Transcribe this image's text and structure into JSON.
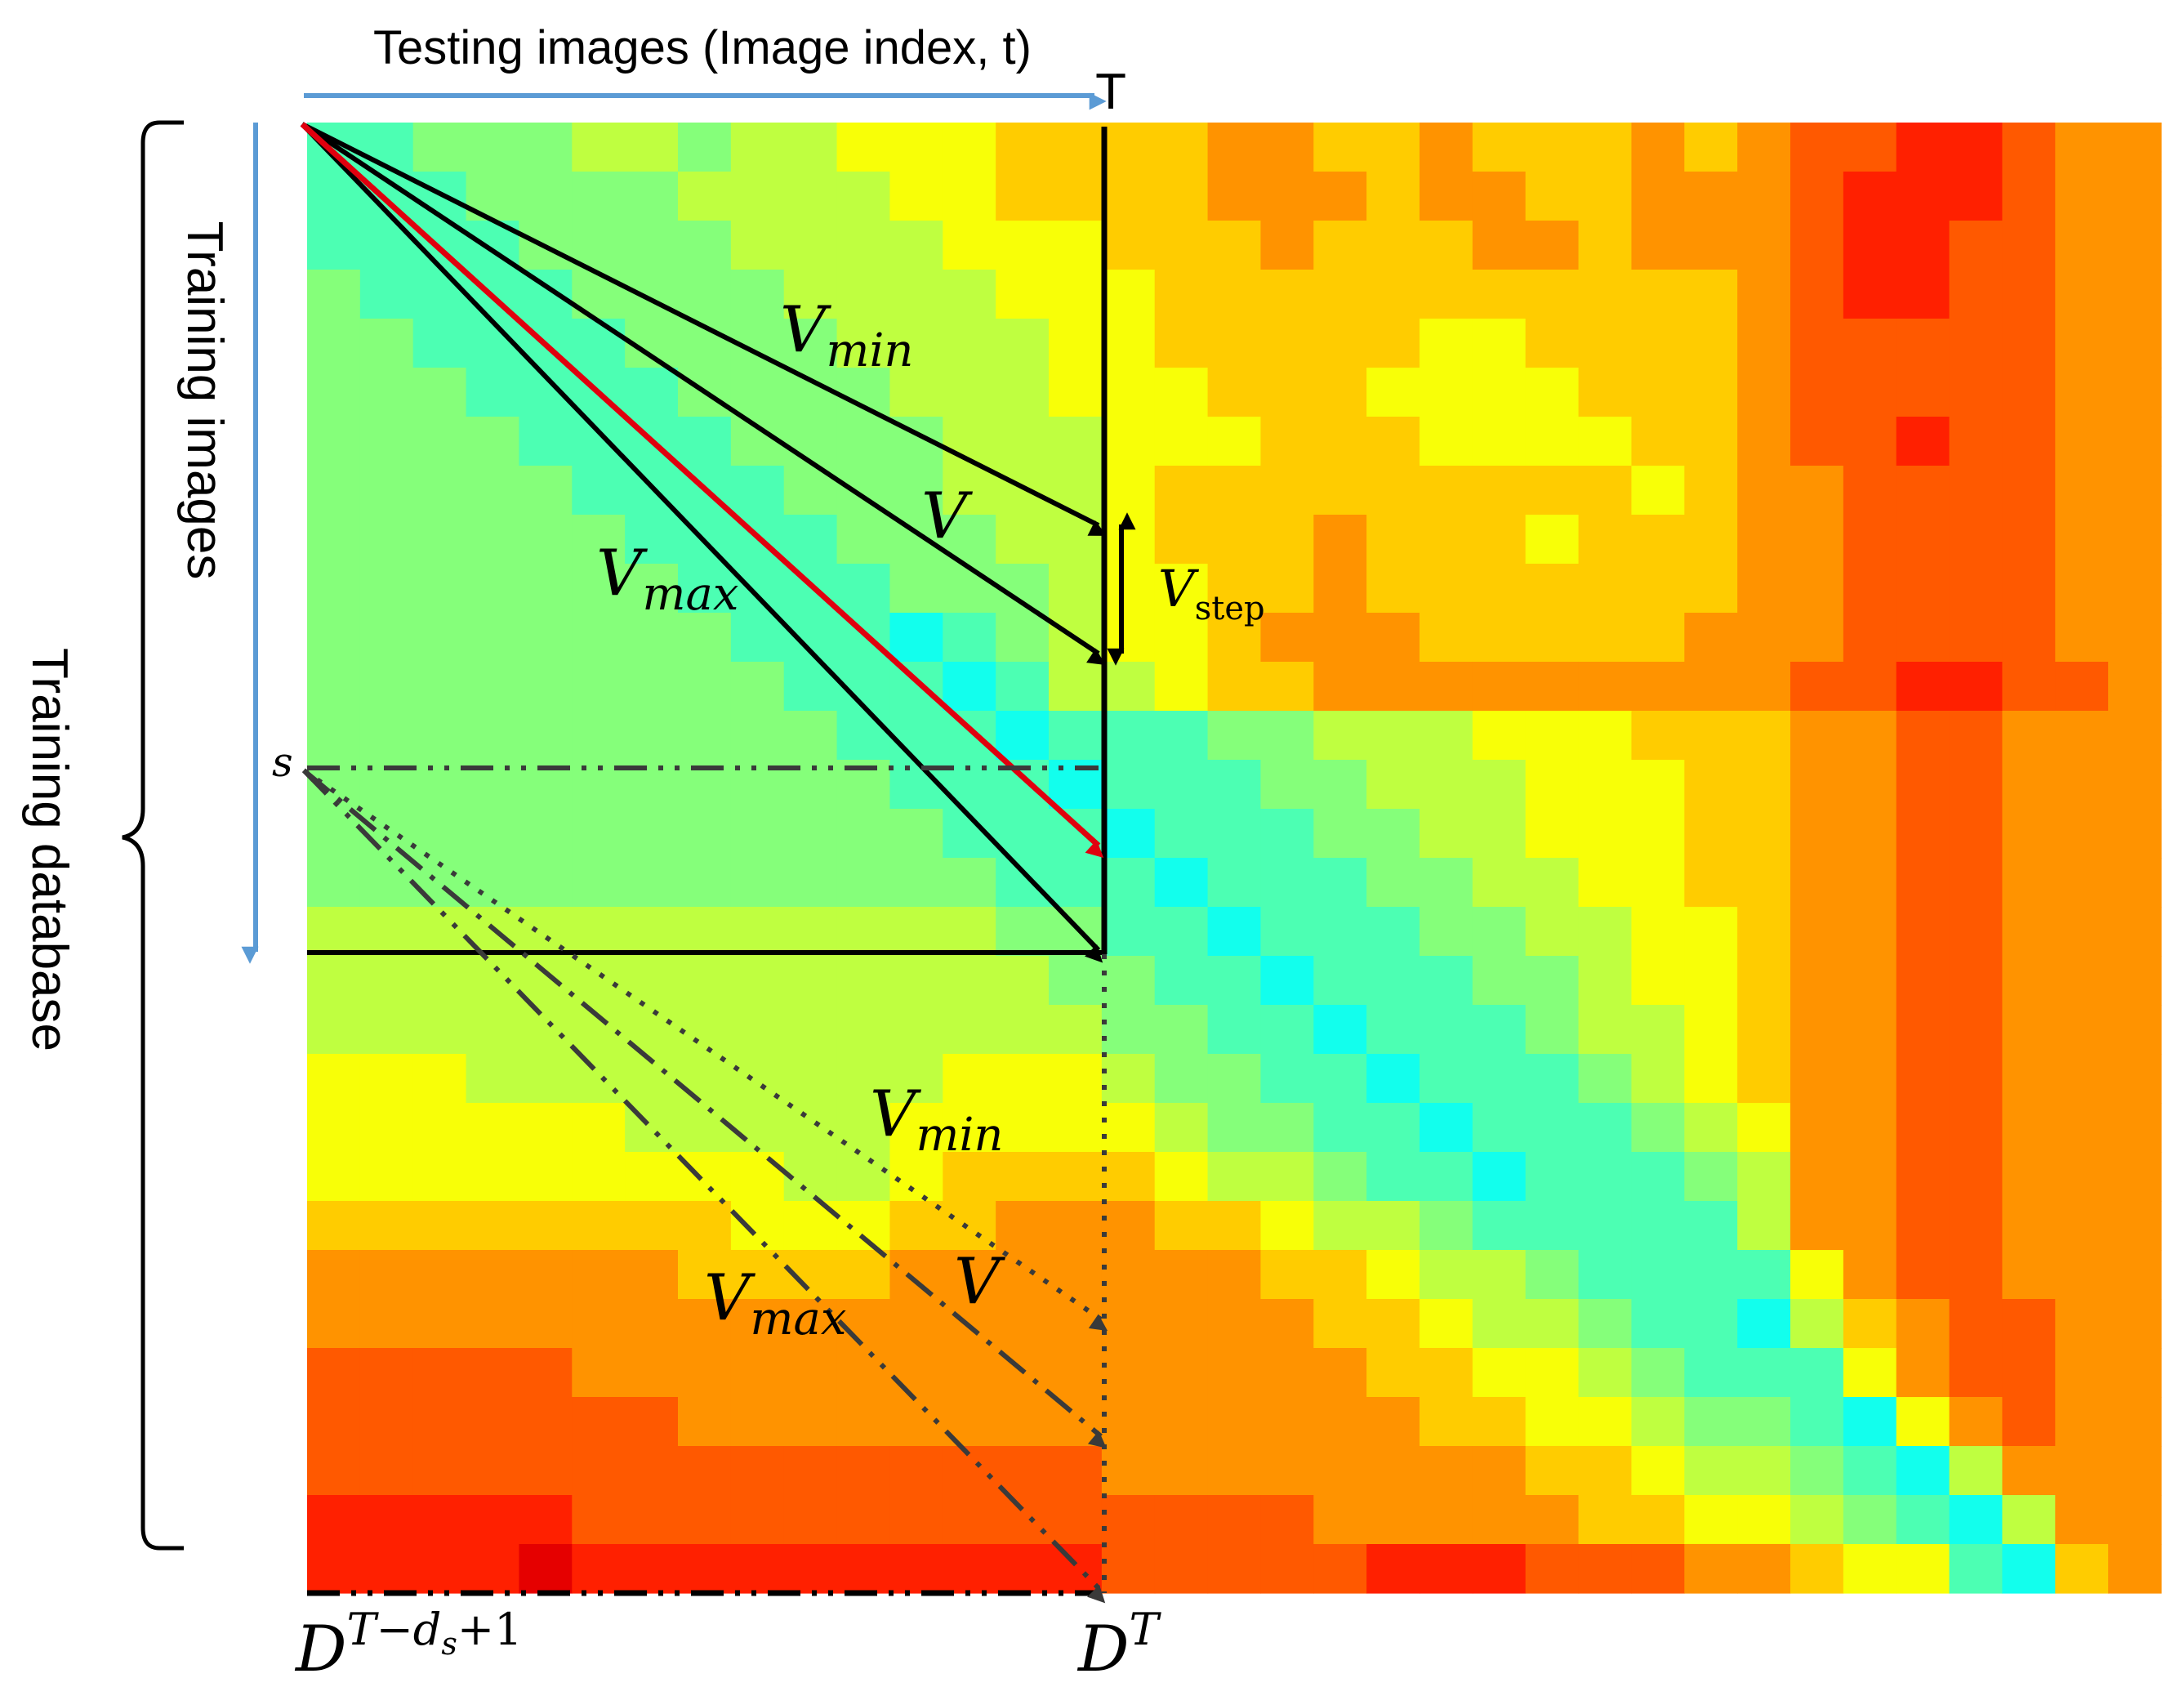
{
  "top_axis": {
    "label": "Testing images (Image index, t)",
    "end_label": "T"
  },
  "left_axis": {
    "inner_label": "Training images",
    "outer_label": "Training database"
  },
  "upper_vectors": {
    "v_min": {
      "base": "V",
      "sub": "min"
    },
    "v": {
      "base": "V"
    },
    "v_max": {
      "base": "V",
      "sub": "max"
    },
    "v_step": {
      "base": "V",
      "sub": "step"
    }
  },
  "lower_vectors": {
    "start_label": "s",
    "v_min": {
      "base": "V",
      "sub": "min"
    },
    "v": {
      "base": "V"
    },
    "v_max": {
      "base": "V",
      "sub": "max"
    }
  },
  "bottom_labels": {
    "left": {
      "base": "D",
      "sup": "T−d",
      "sup_sub": "s",
      "sup_tail": "+1"
    },
    "right": {
      "base": "D",
      "sup": "T"
    }
  },
  "heatmap": {
    "colormap": "jet",
    "rows": 30,
    "cols": 35,
    "values": [
      [
        3,
        3,
        4,
        4,
        4,
        5,
        5,
        4,
        5,
        5,
        6,
        6,
        6,
        7,
        7,
        7,
        7,
        8,
        8,
        7,
        7,
        8,
        7,
        7,
        7,
        8,
        7,
        8,
        9,
        9,
        10,
        10,
        9,
        8,
        8
      ],
      [
        3,
        3,
        3,
        4,
        4,
        4,
        4,
        5,
        5,
        5,
        5,
        6,
        6,
        7,
        7,
        7,
        7,
        8,
        8,
        8,
        7,
        8,
        8,
        7,
        7,
        8,
        8,
        8,
        9,
        10,
        10,
        10,
        9,
        8,
        8
      ],
      [
        3,
        3,
        3,
        3,
        4,
        4,
        4,
        4,
        5,
        5,
        5,
        5,
        6,
        6,
        6,
        7,
        7,
        7,
        8,
        7,
        7,
        7,
        8,
        8,
        7,
        8,
        8,
        8,
        9,
        10,
        10,
        9,
        9,
        8,
        8
      ],
      [
        4,
        3,
        3,
        3,
        3,
        4,
        4,
        4,
        4,
        5,
        5,
        5,
        5,
        6,
        6,
        6,
        7,
        7,
        7,
        7,
        7,
        7,
        7,
        7,
        7,
        7,
        7,
        8,
        9,
        10,
        10,
        9,
        9,
        8,
        8
      ],
      [
        4,
        4,
        3,
        3,
        3,
        3,
        4,
        4,
        4,
        4,
        5,
        5,
        5,
        5,
        6,
        6,
        7,
        7,
        7,
        7,
        7,
        6,
        6,
        7,
        7,
        7,
        7,
        8,
        9,
        9,
        9,
        9,
        9,
        8,
        8
      ],
      [
        4,
        4,
        4,
        3,
        3,
        3,
        3,
        4,
        4,
        4,
        4,
        5,
        5,
        5,
        6,
        6,
        6,
        7,
        7,
        7,
        6,
        6,
        6,
        6,
        7,
        7,
        7,
        8,
        9,
        9,
        9,
        9,
        9,
        8,
        8
      ],
      [
        4,
        4,
        4,
        4,
        3,
        3,
        3,
        3,
        4,
        4,
        4,
        4,
        5,
        5,
        5,
        6,
        6,
        6,
        7,
        7,
        7,
        6,
        6,
        6,
        6,
        7,
        7,
        8,
        9,
        9,
        10,
        9,
        9,
        8,
        8
      ],
      [
        4,
        4,
        4,
        4,
        4,
        3,
        3,
        3,
        3,
        4,
        4,
        4,
        5,
        5,
        5,
        6,
        7,
        7,
        7,
        7,
        7,
        7,
        7,
        7,
        7,
        6,
        7,
        8,
        8,
        9,
        9,
        9,
        9,
        8,
        8
      ],
      [
        4,
        4,
        4,
        4,
        4,
        4,
        3,
        3,
        3,
        3,
        4,
        4,
        4,
        5,
        5,
        6,
        7,
        7,
        7,
        8,
        7,
        7,
        7,
        6,
        7,
        7,
        7,
        8,
        8,
        9,
        9,
        9,
        9,
        8,
        8
      ],
      [
        4,
        4,
        4,
        4,
        4,
        4,
        4,
        3,
        3,
        3,
        3,
        4,
        4,
        4,
        5,
        6,
        6,
        7,
        7,
        8,
        7,
        7,
        7,
        7,
        7,
        7,
        7,
        8,
        8,
        9,
        9,
        9,
        9,
        8,
        8
      ],
      [
        4,
        4,
        4,
        4,
        4,
        4,
        4,
        4,
        3,
        3,
        3,
        2,
        3,
        4,
        5,
        6,
        6,
        7,
        8,
        8,
        8,
        7,
        7,
        7,
        7,
        7,
        8,
        8,
        8,
        9,
        9,
        9,
        9,
        8,
        8
      ],
      [
        4,
        4,
        4,
        4,
        4,
        4,
        4,
        4,
        4,
        3,
        3,
        3,
        2,
        3,
        5,
        5,
        6,
        7,
        7,
        8,
        8,
        8,
        8,
        8,
        8,
        8,
        8,
        8,
        9,
        9,
        10,
        10,
        9,
        9,
        8
      ],
      [
        4,
        4,
        4,
        4,
        4,
        4,
        4,
        4,
        4,
        4,
        3,
        3,
        3,
        2,
        3,
        3,
        3,
        4,
        4,
        5,
        5,
        5,
        6,
        6,
        6,
        7,
        7,
        7,
        8,
        8,
        9,
        9,
        8,
        8,
        8
      ],
      [
        4,
        4,
        4,
        4,
        4,
        4,
        4,
        4,
        4,
        4,
        4,
        3,
        3,
        3,
        2,
        3,
        3,
        3,
        4,
        4,
        5,
        5,
        5,
        6,
        6,
        6,
        7,
        7,
        8,
        8,
        9,
        9,
        8,
        8,
        8
      ],
      [
        4,
        4,
        4,
        4,
        4,
        4,
        4,
        4,
        4,
        4,
        4,
        4,
        3,
        3,
        3,
        2,
        3,
        3,
        3,
        4,
        4,
        5,
        5,
        6,
        6,
        6,
        7,
        7,
        8,
        8,
        9,
        9,
        8,
        8,
        8
      ],
      [
        4,
        4,
        4,
        4,
        4,
        4,
        4,
        4,
        4,
        4,
        4,
        4,
        4,
        3,
        3,
        3,
        2,
        3,
        3,
        3,
        4,
        4,
        5,
        5,
        6,
        6,
        7,
        7,
        8,
        8,
        9,
        9,
        8,
        8,
        8
      ],
      [
        5,
        5,
        5,
        5,
        5,
        5,
        5,
        5,
        5,
        5,
        5,
        5,
        5,
        4,
        4,
        3,
        3,
        2,
        3,
        3,
        3,
        4,
        4,
        5,
        5,
        6,
        6,
        7,
        8,
        8,
        9,
        9,
        8,
        8,
        8
      ],
      [
        5,
        5,
        5,
        5,
        5,
        5,
        5,
        5,
        5,
        5,
        5,
        5,
        5,
        5,
        4,
        4,
        3,
        3,
        2,
        3,
        3,
        3,
        4,
        4,
        5,
        6,
        6,
        7,
        8,
        8,
        9,
        9,
        8,
        8,
        8
      ],
      [
        5,
        5,
        5,
        5,
        5,
        5,
        5,
        5,
        5,
        5,
        5,
        5,
        5,
        5,
        5,
        4,
        4,
        3,
        3,
        2,
        3,
        3,
        3,
        4,
        5,
        5,
        6,
        7,
        8,
        8,
        9,
        9,
        8,
        8,
        8
      ],
      [
        6,
        6,
        6,
        5,
        5,
        5,
        5,
        5,
        5,
        5,
        5,
        5,
        6,
        6,
        6,
        5,
        4,
        4,
        3,
        3,
        2,
        3,
        3,
        3,
        4,
        5,
        6,
        7,
        8,
        8,
        9,
        9,
        8,
        8,
        8
      ],
      [
        6,
        6,
        6,
        6,
        6,
        6,
        5,
        5,
        5,
        5,
        5,
        6,
        6,
        6,
        6,
        6,
        5,
        4,
        4,
        3,
        3,
        2,
        3,
        3,
        3,
        4,
        5,
        6,
        8,
        8,
        9,
        9,
        8,
        8,
        8
      ],
      [
        6,
        6,
        6,
        6,
        6,
        6,
        6,
        6,
        6,
        5,
        5,
        6,
        7,
        7,
        7,
        7,
        6,
        5,
        5,
        4,
        3,
        3,
        2,
        3,
        3,
        3,
        4,
        5,
        8,
        8,
        9,
        9,
        8,
        8,
        8
      ],
      [
        7,
        7,
        7,
        7,
        7,
        7,
        7,
        7,
        6,
        6,
        6,
        7,
        7,
        8,
        8,
        8,
        7,
        7,
        6,
        5,
        5,
        4,
        3,
        3,
        3,
        3,
        3,
        5,
        8,
        8,
        9,
        9,
        8,
        8,
        8
      ],
      [
        8,
        8,
        8,
        8,
        8,
        8,
        8,
        7,
        7,
        7,
        7,
        8,
        8,
        8,
        8,
        8,
        8,
        8,
        7,
        7,
        6,
        5,
        5,
        4,
        3,
        3,
        3,
        3,
        6,
        8,
        9,
        9,
        8,
        8,
        8
      ],
      [
        8,
        8,
        8,
        8,
        8,
        8,
        8,
        8,
        8,
        8,
        8,
        8,
        8,
        8,
        8,
        8,
        8,
        8,
        8,
        7,
        7,
        6,
        5,
        5,
        4,
        3,
        3,
        2,
        5,
        7,
        8,
        9,
        9,
        8,
        8
      ],
      [
        9,
        9,
        9,
        9,
        9,
        8,
        8,
        8,
        8,
        8,
        8,
        8,
        8,
        8,
        8,
        8,
        8,
        8,
        8,
        8,
        7,
        7,
        6,
        6,
        5,
        4,
        3,
        3,
        3,
        6,
        8,
        9,
        9,
        8,
        8
      ],
      [
        9,
        9,
        9,
        9,
        9,
        9,
        9,
        8,
        8,
        8,
        8,
        8,
        8,
        8,
        8,
        8,
        8,
        8,
        8,
        8,
        8,
        7,
        7,
        6,
        6,
        5,
        4,
        4,
        3,
        2,
        6,
        8,
        9,
        8,
        8
      ],
      [
        9,
        9,
        9,
        9,
        9,
        9,
        9,
        9,
        9,
        9,
        9,
        9,
        9,
        9,
        9,
        8,
        8,
        8,
        8,
        8,
        8,
        8,
        8,
        7,
        7,
        6,
        5,
        5,
        4,
        3,
        2,
        5,
        8,
        8,
        8
      ],
      [
        10,
        10,
        10,
        10,
        10,
        9,
        9,
        9,
        9,
        9,
        9,
        9,
        9,
        9,
        9,
        9,
        9,
        9,
        9,
        8,
        8,
        8,
        8,
        8,
        7,
        7,
        6,
        6,
        5,
        4,
        3,
        2,
        5,
        8,
        8
      ],
      [
        10,
        10,
        10,
        10,
        11,
        10,
        10,
        10,
        10,
        10,
        10,
        10,
        10,
        10,
        10,
        9,
        9,
        9,
        9,
        9,
        10,
        10,
        10,
        9,
        9,
        9,
        8,
        8,
        7,
        6,
        6,
        3,
        2,
        7,
        8
      ]
    ]
  }
}
